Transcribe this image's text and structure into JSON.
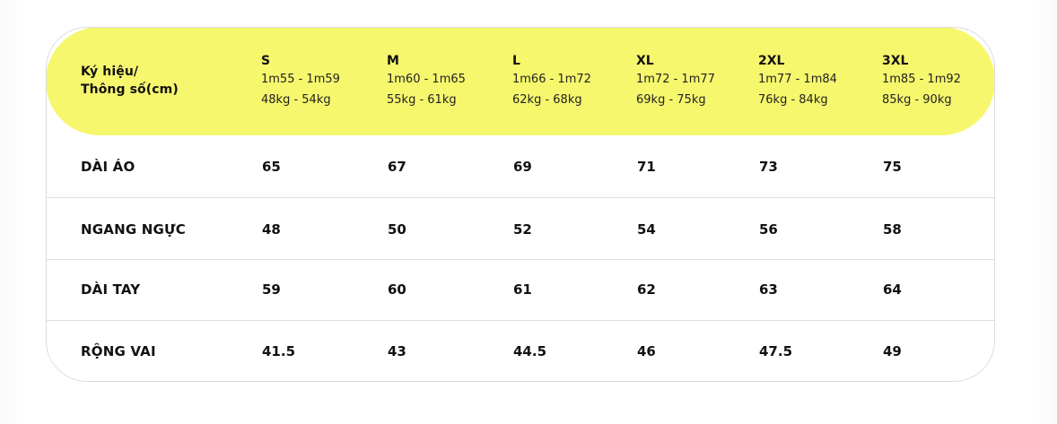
{
  "table": {
    "corner_label_line1": "Ký hiệu/",
    "corner_label_line2": "Thông số(cm)",
    "sizes": [
      {
        "name": "S",
        "height": "1m55 - 1m59",
        "weight": "48kg - 54kg"
      },
      {
        "name": "M",
        "height": "1m60 - 1m65",
        "weight": "55kg - 61kg"
      },
      {
        "name": "L",
        "height": "1m66 - 1m72",
        "weight": "62kg - 68kg"
      },
      {
        "name": "XL",
        "height": "1m72 - 1m77",
        "weight": "69kg - 75kg"
      },
      {
        "name": "2XL",
        "height": "1m77 - 1m84",
        "weight": "76kg - 84kg"
      },
      {
        "name": "3XL",
        "height": "1m85 - 1m92",
        "weight": "85kg - 90kg"
      }
    ],
    "rows": [
      {
        "label": "DÀI ÁO",
        "values": [
          "65",
          "67",
          "69",
          "71",
          "73",
          "75"
        ]
      },
      {
        "label": "NGANG NGỰC",
        "values": [
          "48",
          "50",
          "52",
          "54",
          "56",
          "58"
        ]
      },
      {
        "label": "DÀI TAY",
        "values": [
          "59",
          "60",
          "61",
          "62",
          "63",
          "64"
        ]
      },
      {
        "label": "RỘNG VAI",
        "values": [
          "41.5",
          "43",
          "44.5",
          "46",
          "47.5",
          "49"
        ]
      }
    ],
    "colors": {
      "header_bg": "#f6f76d",
      "border": "#dcdcdc",
      "text": "#111111"
    }
  }
}
